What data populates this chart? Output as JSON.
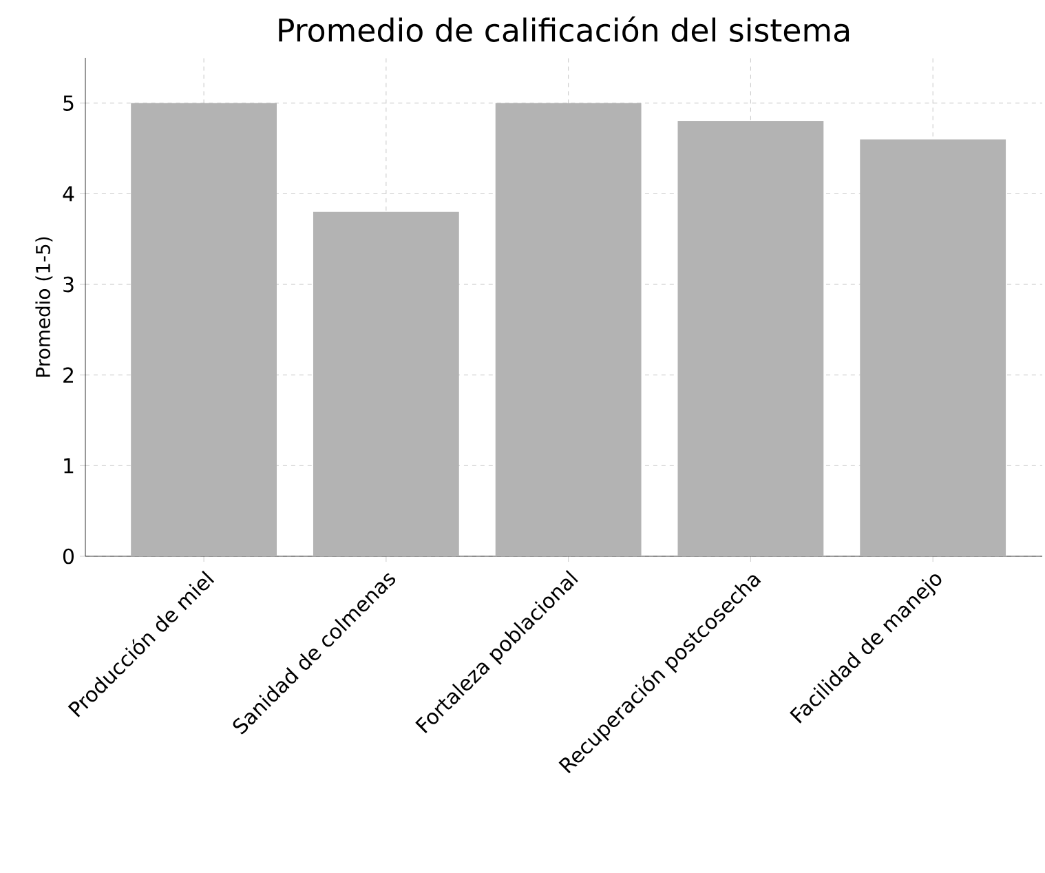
{
  "chart_data": {
    "type": "bar",
    "title": "Promedio de calificación del sistema",
    "ylabel": "Promedio (1-5)",
    "categories": [
      "Producción de miel",
      "Sanidad de colmenas",
      "Fortaleza poblacional",
      "Recuperación postcosecha",
      "Facilidad de manejo"
    ],
    "values": [
      5.0,
      3.8,
      5.0,
      4.8,
      4.6
    ],
    "color": "#b3b3b3",
    "ylim": [
      0,
      5.5
    ],
    "yticks": [
      0,
      1,
      2,
      3,
      4,
      5
    ],
    "grid": true
  }
}
